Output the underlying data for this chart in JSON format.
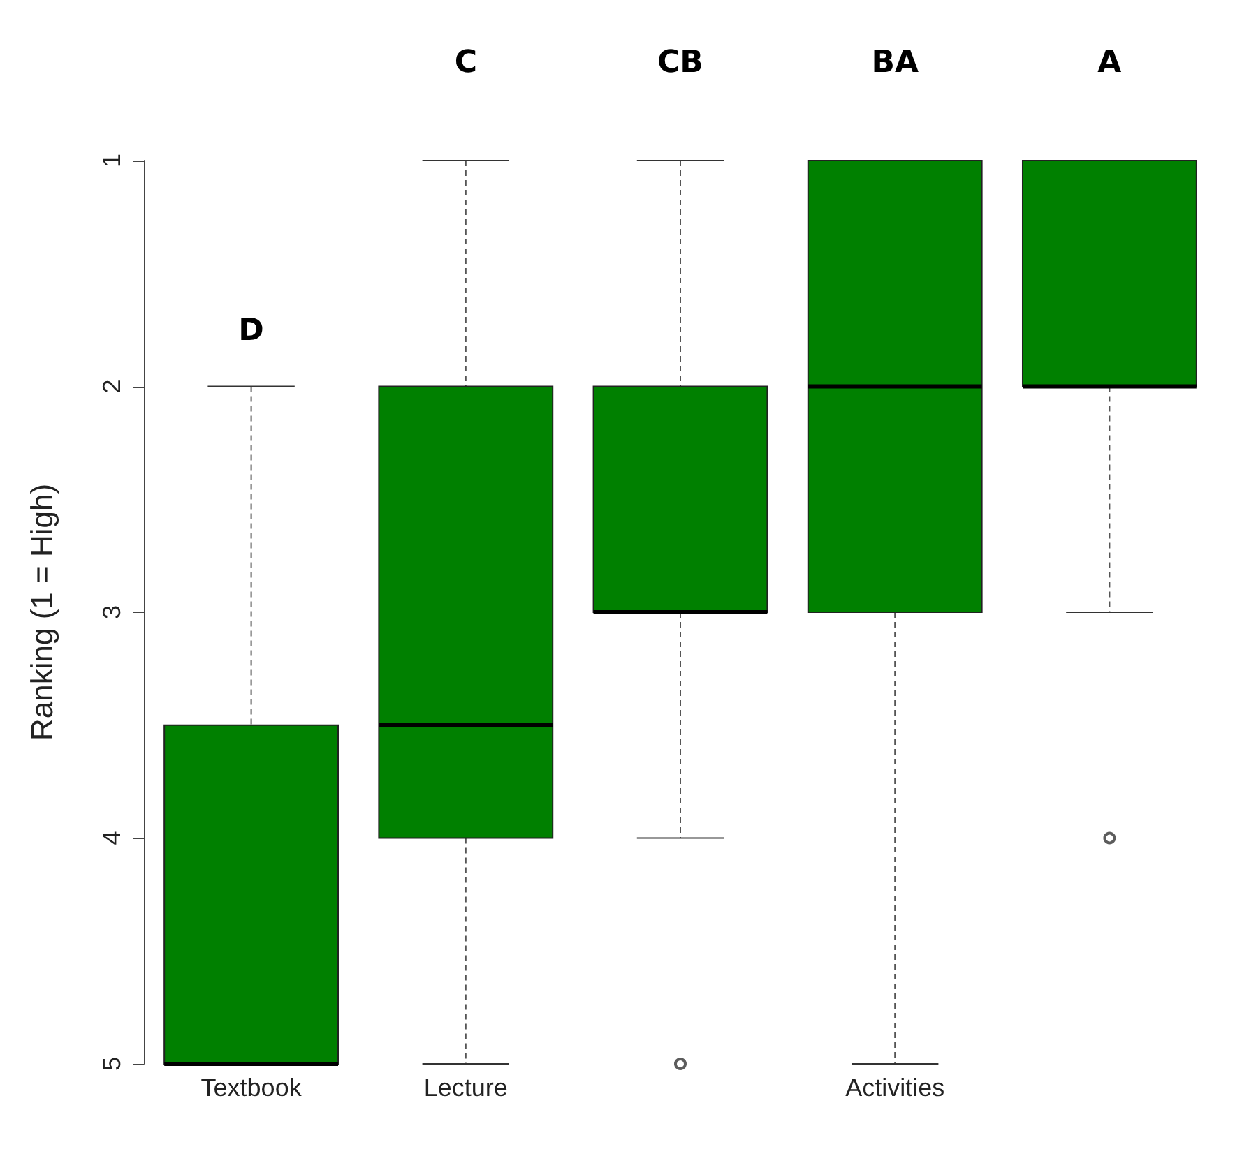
{
  "chart_data": {
    "type": "box",
    "ylabel": "Ranking (1 = High)",
    "categories": [
      "Textbook",
      "Lecture",
      null,
      "Activities",
      null
    ],
    "color": "#008000",
    "ylim": [
      5,
      1
    ],
    "yticks": [
      1,
      2,
      3,
      4,
      5
    ],
    "grid": false,
    "marker": "circle",
    "boxes": [
      {
        "low": 2,
        "q1": 3.5,
        "median": 5,
        "q3": 5,
        "high": 5
      },
      {
        "low": 1,
        "q1": 2,
        "median": 3.5,
        "q3": 4,
        "high": 5
      },
      {
        "low": 1,
        "q1": 2,
        "median": 3,
        "q3": 3,
        "high": 4,
        "outliers": [
          5
        ]
      },
      {
        "low": 1,
        "q1": 1,
        "median": 2,
        "q3": 3,
        "high": 5
      },
      {
        "low": 1,
        "q1": 1,
        "median": 2,
        "q3": 2,
        "high": 3,
        "outliers": [
          4
        ]
      }
    ],
    "annotations": [
      "D",
      "C",
      "CB",
      "BA",
      "A"
    ]
  }
}
